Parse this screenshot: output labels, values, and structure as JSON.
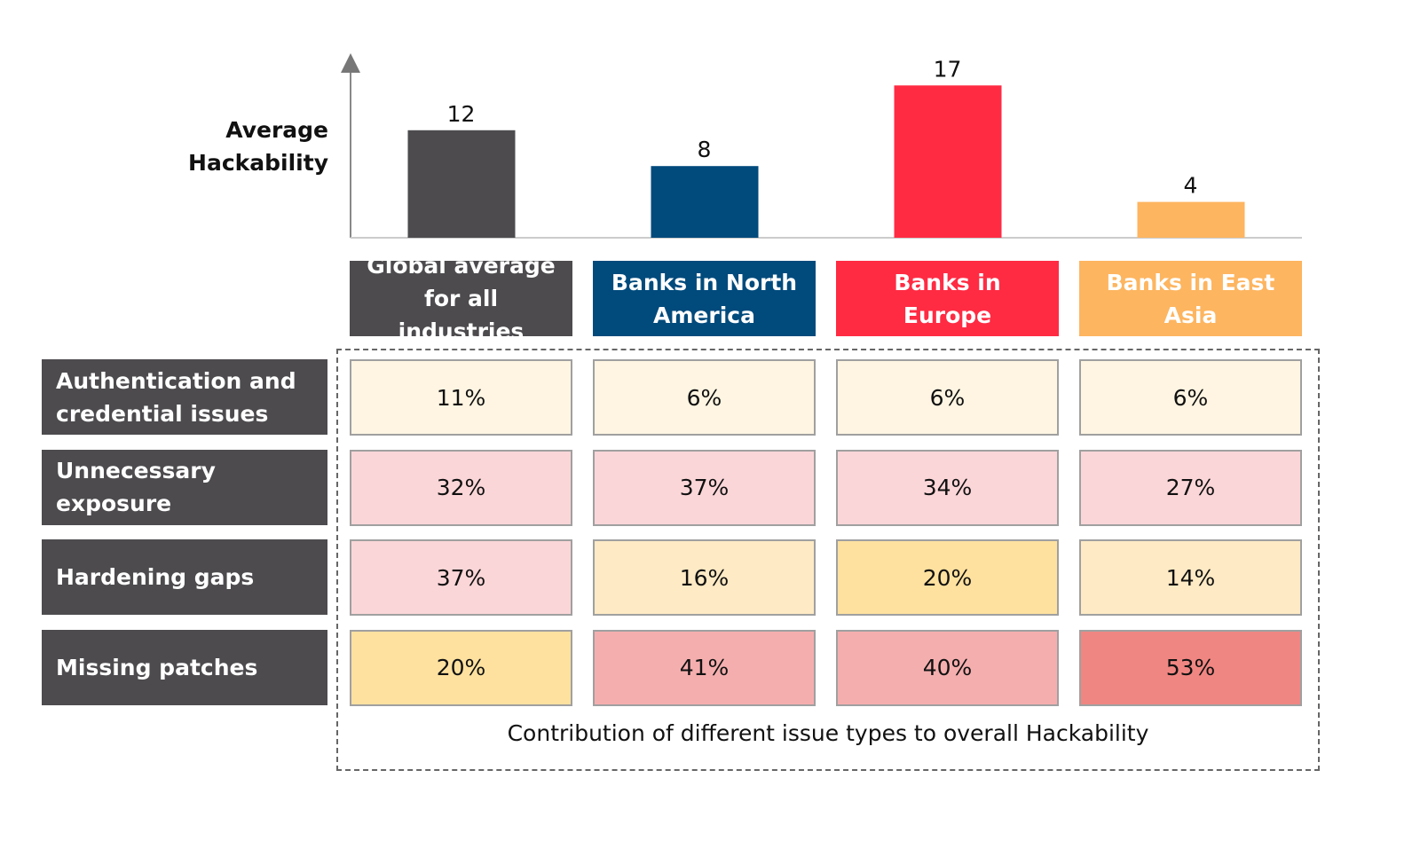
{
  "chart_data": [
    {
      "type": "bar",
      "ylabel": "Average Hackability",
      "categories": [
        "Global average for all industries",
        "Banks in North America",
        "Banks in Europe",
        "Banks in East Asia"
      ],
      "values": [
        12,
        8,
        17,
        4
      ],
      "colors": [
        "#4d4b4e",
        "#004a7c",
        "#ff2b43",
        "#fdb560"
      ],
      "ylim": [
        0,
        20
      ]
    },
    {
      "type": "heatmap",
      "title": "Contribution of different issue types to overall Hackability",
      "rows": [
        "Authentication and credential issues",
        "Unnecessary exposure",
        "Hardening gaps",
        "Missing patches"
      ],
      "values": [
        [
          11,
          6,
          6,
          6
        ],
        [
          32,
          37,
          34,
          27
        ],
        [
          37,
          16,
          20,
          14
        ],
        [
          20,
          41,
          40,
          53
        ]
      ],
      "value_labels": [
        [
          "11%",
          "6%",
          "6%",
          "6%"
        ],
        [
          "32%",
          "37%",
          "34%",
          "27%"
        ],
        [
          "37%",
          "16%",
          "20%",
          "14%"
        ],
        [
          "20%",
          "41%",
          "40%",
          "53%"
        ]
      ],
      "colors": [
        [
          "#fff5e2",
          "#fff5e2",
          "#fff5e2",
          "#fff5e2"
        ],
        [
          "#fbd6d8",
          "#fbd6d8",
          "#fbd6d8",
          "#fbd6d8"
        ],
        [
          "#fbd6d8",
          "#feeac4",
          "#fee19f",
          "#feeac4"
        ],
        [
          "#fee19f",
          "#f5aeae",
          "#f5aeae",
          "#f08682"
        ]
      ]
    }
  ]
}
